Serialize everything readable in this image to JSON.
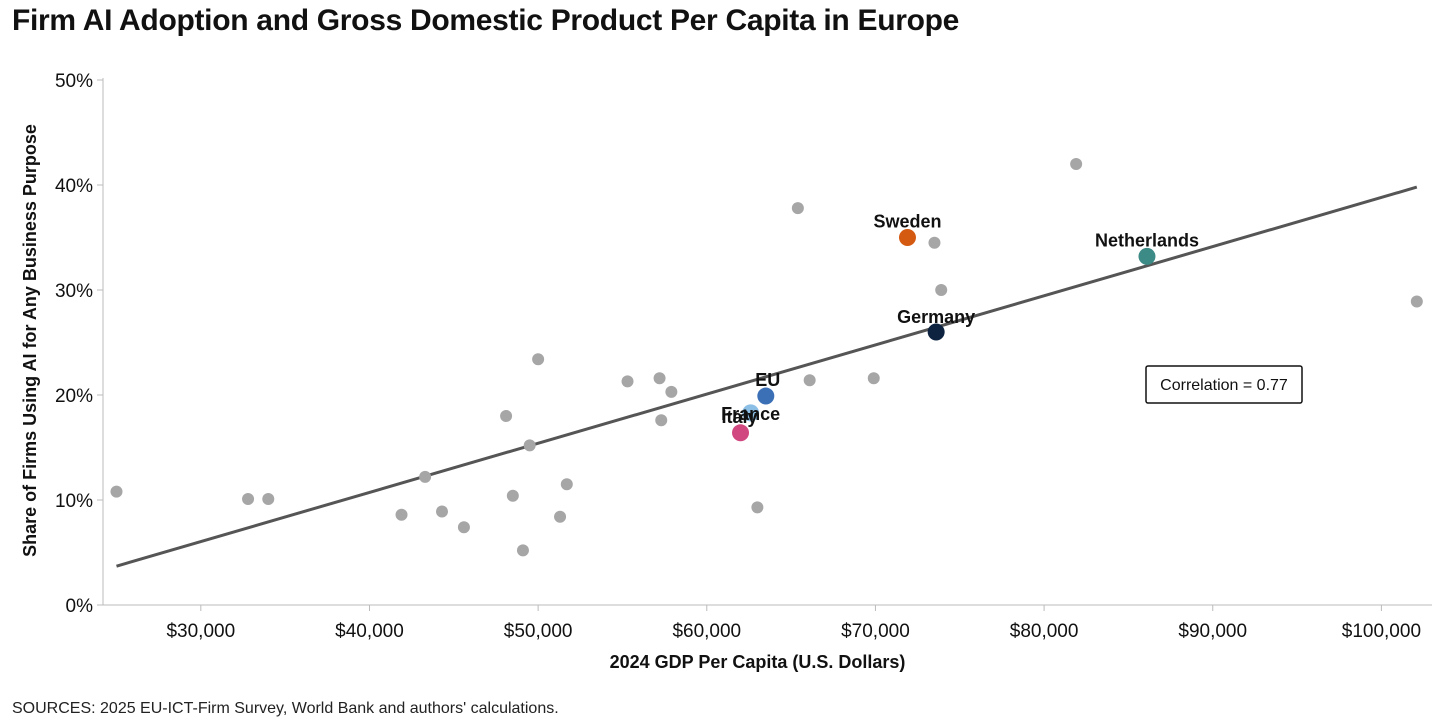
{
  "title": "Firm AI Adoption and Gross Domestic Product Per Capita in Europe",
  "source": "SOURCES: 2025 EU-ICT-Firm Survey, World Bank and authors' calculations.",
  "chart_data": {
    "type": "scatter",
    "title": "Firm AI Adoption and Gross Domestic Product Per Capita in Europe",
    "xlabel": "2024 GDP Per Capita (U.S. Dollars)",
    "ylabel": "Share of Firms Using AI for Any Business Purpose",
    "xlim": [
      24200,
      103000
    ],
    "ylim": [
      0,
      50
    ],
    "x_ticks": [
      30000,
      40000,
      50000,
      60000,
      70000,
      80000,
      90000,
      100000
    ],
    "x_tick_labels": [
      "$30,000",
      "$40,000",
      "$50,000",
      "$60,000",
      "$70,000",
      "$80,000",
      "$90,000",
      "$100,000"
    ],
    "y_ticks": [
      0,
      10,
      20,
      30,
      40,
      50
    ],
    "y_tick_labels": [
      "0%",
      "10%",
      "20%",
      "30%",
      "40%",
      "50%"
    ],
    "default_color": "#a6a6a6",
    "points": [
      {
        "x": 25000,
        "y": 10.8
      },
      {
        "x": 32800,
        "y": 10.1
      },
      {
        "x": 34000,
        "y": 10.1
      },
      {
        "x": 41900,
        "y": 8.6
      },
      {
        "x": 43300,
        "y": 12.2
      },
      {
        "x": 44300,
        "y": 8.9
      },
      {
        "x": 45600,
        "y": 7.4
      },
      {
        "x": 48100,
        "y": 18.0
      },
      {
        "x": 48500,
        "y": 10.4
      },
      {
        "x": 49100,
        "y": 5.2
      },
      {
        "x": 49500,
        "y": 15.2
      },
      {
        "x": 50000,
        "y": 23.4
      },
      {
        "x": 51300,
        "y": 8.4
      },
      {
        "x": 51700,
        "y": 11.5
      },
      {
        "x": 55300,
        "y": 21.3
      },
      {
        "x": 57200,
        "y": 21.6
      },
      {
        "x": 57300,
        "y": 17.6
      },
      {
        "x": 57900,
        "y": 20.3
      },
      {
        "x": 63000,
        "y": 9.3
      },
      {
        "x": 65400,
        "y": 37.8
      },
      {
        "x": 66100,
        "y": 21.4
      },
      {
        "x": 69900,
        "y": 21.6
      },
      {
        "x": 73500,
        "y": 34.5
      },
      {
        "x": 73900,
        "y": 30.0
      },
      {
        "x": 81900,
        "y": 42.0
      },
      {
        "x": 102100,
        "y": 28.9
      }
    ],
    "highlighted": [
      {
        "name": "Sweden",
        "x": 71900,
        "y": 35.0,
        "color": "#d45a12"
      },
      {
        "name": "Netherlands",
        "x": 86100,
        "y": 33.2,
        "color": "#3d8b87"
      },
      {
        "name": "Germany",
        "x": 73600,
        "y": 26.0,
        "color": "#0d2340"
      },
      {
        "name": "EU",
        "x": 63500,
        "y": 19.9,
        "color": "#3b6fb6"
      },
      {
        "name": "France",
        "x": 62600,
        "y": 18.3,
        "color": "#8bbfe6"
      },
      {
        "name": "Italy",
        "x": 62000,
        "y": 16.4,
        "color": "#d1477f"
      }
    ],
    "trendline": {
      "x": [
        25000,
        102100
      ],
      "y": [
        3.7,
        39.8
      ],
      "color": "#555555"
    },
    "annotation": "Correlation = 0.77"
  }
}
